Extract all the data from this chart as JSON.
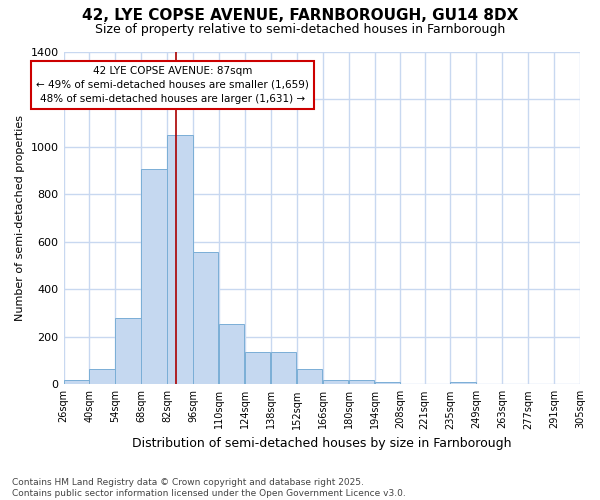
{
  "title": "42, LYE COPSE AVENUE, FARNBOROUGH, GU14 8DX",
  "subtitle": "Size of property relative to semi-detached houses in Farnborough",
  "xlabel": "Distribution of semi-detached houses by size in Farnborough",
  "ylabel": "Number of semi-detached properties",
  "bins": [
    26,
    40,
    54,
    68,
    82,
    96,
    110,
    124,
    138,
    152,
    166,
    180,
    194,
    208,
    221,
    235,
    249,
    263,
    277,
    291,
    305
  ],
  "counts": [
    20,
    65,
    280,
    905,
    1050,
    555,
    255,
    135,
    135,
    65,
    20,
    18,
    10,
    0,
    0,
    8,
    0,
    0,
    0,
    0
  ],
  "bar_color": "#c5d8f0",
  "bar_edge_color": "#7aaed6",
  "vline_x": 87,
  "vline_color": "#aa0000",
  "annotation_line1": "42 LYE COPSE AVENUE: 87sqm",
  "annotation_line2": "← 49% of semi-detached houses are smaller (1,659)",
  "annotation_line3": "48% of semi-detached houses are larger (1,631) →",
  "annotation_box_color": "#ffffff",
  "annotation_border_color": "#cc0000",
  "ylim": [
    0,
    1400
  ],
  "yticks": [
    0,
    200,
    400,
    600,
    800,
    1000,
    1200,
    1400
  ],
  "tick_labels": [
    "26sqm",
    "40sqm",
    "54sqm",
    "68sqm",
    "82sqm",
    "96sqm",
    "110sqm",
    "124sqm",
    "138sqm",
    "152sqm",
    "166sqm",
    "180sqm",
    "194sqm",
    "208sqm",
    "221sqm",
    "235sqm",
    "249sqm",
    "263sqm",
    "277sqm",
    "291sqm",
    "305sqm"
  ],
  "footer": "Contains HM Land Registry data © Crown copyright and database right 2025.\nContains public sector information licensed under the Open Government Licence v3.0.",
  "bg_color": "#ffffff",
  "grid_color": "#c8d8f0",
  "title_fontsize": 11,
  "subtitle_fontsize": 9,
  "ylabel_fontsize": 8,
  "xlabel_fontsize": 9,
  "footer_fontsize": 6.5
}
